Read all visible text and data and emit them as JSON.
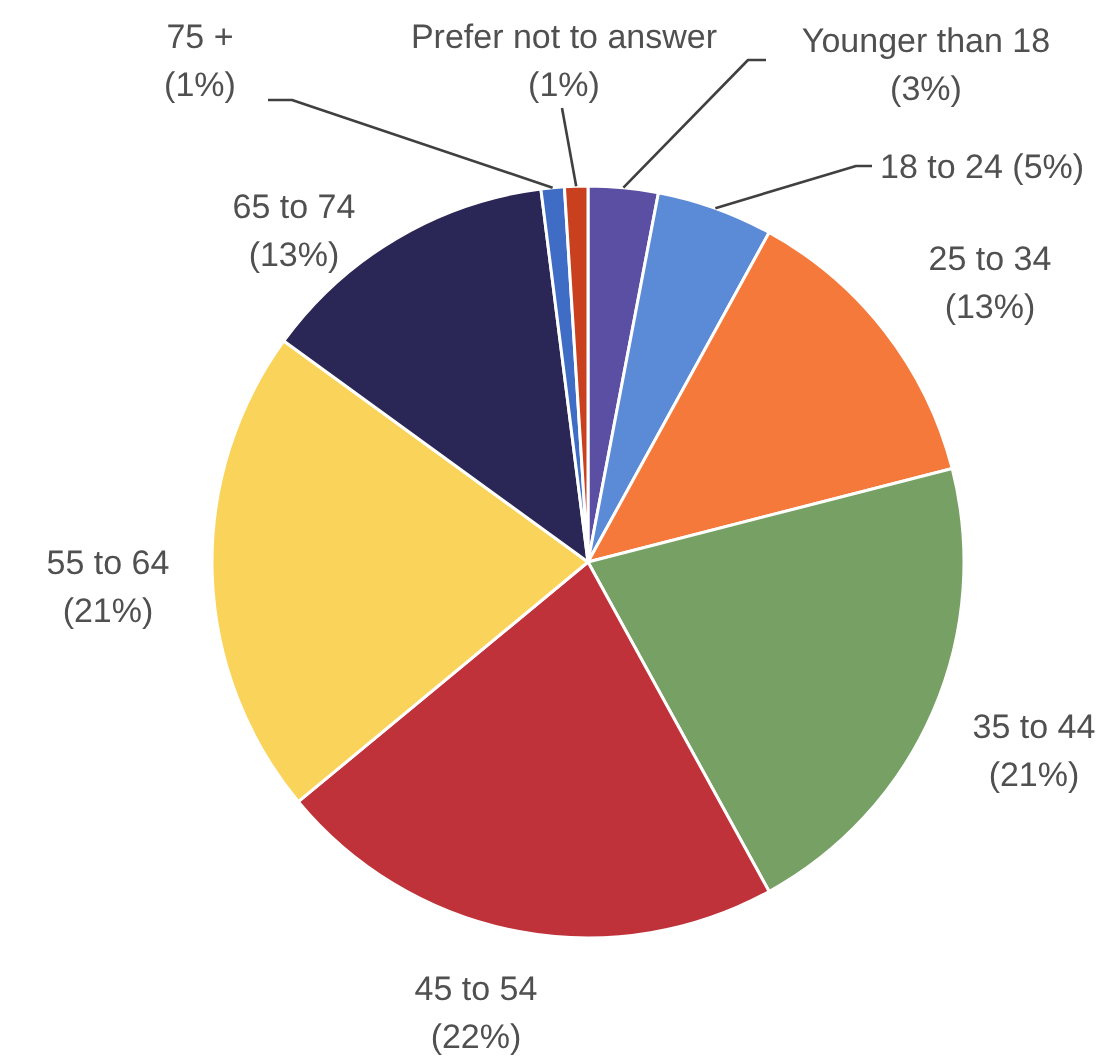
{
  "chart_data": {
    "type": "pie",
    "categories": [
      "Younger than 18",
      "18 to 24",
      "25 to 34",
      "35 to 44",
      "45 to 54",
      "55 to 64",
      "65 to 74",
      "75 +",
      "Prefer not to answer"
    ],
    "values": [
      3,
      5,
      13,
      21,
      22,
      21,
      13,
      1,
      1
    ],
    "value_labels": [
      "(3%)",
      "(5%)",
      "(13%)",
      "(21%)",
      "(22%)",
      "(21%)",
      "(13%)",
      "(1%)",
      "(1%)"
    ],
    "colors": [
      "#5b4fa3",
      "#5b8ad6",
      "#f5793b",
      "#77a065",
      "#c0323a",
      "#fad45a",
      "#2a2656",
      "#3f6cc4",
      "#c8401e"
    ]
  }
}
